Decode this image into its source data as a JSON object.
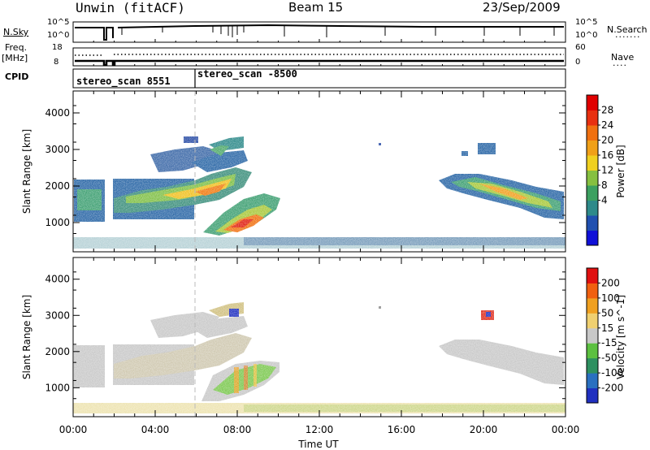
{
  "header": {
    "station": "Unwin (fitACF)",
    "beam": "Beam 15",
    "date": "23/Sep/2009"
  },
  "panels": {
    "nsky": {
      "left_label": "N.Sky",
      "right_label": "N.Search",
      "left_ticks": [
        "10^5",
        "10^0"
      ],
      "right_ticks": [
        "10^5",
        "10^0"
      ]
    },
    "freq": {
      "left_label_1": "Freq.",
      "left_label_2": "[MHz]",
      "right_label": "Nave",
      "left_ticks": [
        "18",
        "8"
      ],
      "right_ticks": [
        "60",
        "0"
      ]
    },
    "cpid": {
      "label": "CPID",
      "scans": [
        "stereo_scan 8551",
        "stereo_scan -8500"
      ]
    }
  },
  "chart_data": [
    {
      "type": "heatmap",
      "title": "",
      "ylabel": "Slant Range [km]",
      "xlabel": "",
      "ylim": [
        200,
        4600
      ],
      "y_ticks": [
        "1000",
        "2000",
        "3000",
        "4000"
      ],
      "colorbar": {
        "label": "Power [dB]",
        "ticks": [
          "28",
          "24",
          "20",
          "16",
          "12",
          "8",
          "4"
        ],
        "colors": [
          "#1010d8",
          "#2050b0",
          "#2e8a8a",
          "#3ca060",
          "#86c040",
          "#f0d020",
          "#f0a018",
          "#f07010",
          "#e83010",
          "#e00000"
        ]
      }
    },
    {
      "type": "heatmap",
      "title": "",
      "ylabel": "Slant Range [km]",
      "xlabel": "Time UT",
      "ylim": [
        200,
        4600
      ],
      "y_ticks": [
        "1000",
        "2000",
        "3000",
        "4000"
      ],
      "x_ticks": [
        "00:00",
        "04:00",
        "08:00",
        "12:00",
        "16:00",
        "20:00",
        "00:00"
      ],
      "colorbar": {
        "label": "Velocity [m s^-1]",
        "ticks": [
          "200",
          "100",
          "50",
          "15",
          "-15",
          "-50",
          "-100",
          "-200"
        ],
        "colors": [
          "#2030c0",
          "#2a70c0",
          "#2e9060",
          "#5cc040",
          "#c8c8c8",
          "#f0d070",
          "#f0a020",
          "#f06010",
          "#e01010"
        ]
      }
    }
  ]
}
